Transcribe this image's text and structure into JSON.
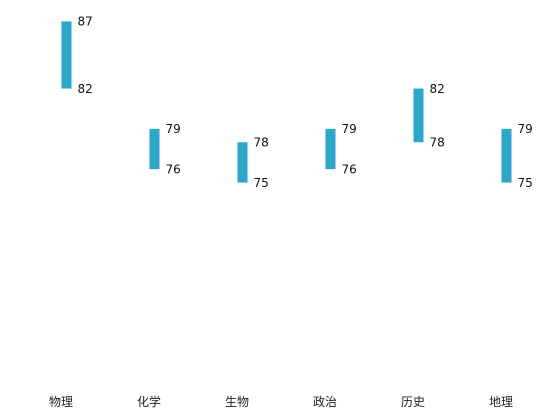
{
  "chart_data": {
    "type": "bar",
    "subtype": "range",
    "categories": [
      "物理",
      "化学",
      "生物",
      "政治",
      "历史",
      "地理"
    ],
    "series": [
      {
        "high": [
          87,
          79,
          78,
          79,
          82,
          79
        ],
        "low": [
          82,
          76,
          75,
          76,
          78,
          75
        ]
      }
    ],
    "title": "",
    "xlabel": "",
    "ylabel": "",
    "ylim": [
      60,
      88
    ],
    "grid": false,
    "legend": "none",
    "colors": {
      "bar": "#2aa7c9",
      "label": "#111111",
      "axis_text": "#222222"
    }
  }
}
